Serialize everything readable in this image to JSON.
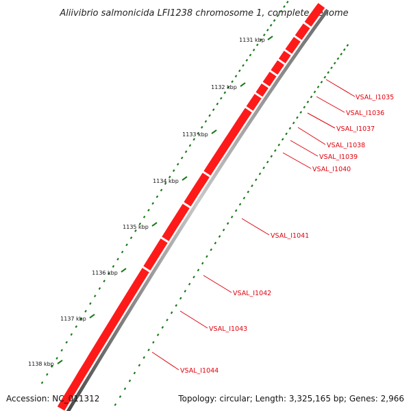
{
  "title": "Aliivibrio salmonicida LFI1238 chromosome 1, complete genome",
  "footer": {
    "accession": "Accession: NC_011312",
    "summary": "Topology: circular; Length: 3,325,165 bp; Genes: 2,966"
  },
  "colors": {
    "backbone": "#8a8a8a",
    "gene": "#ff1a1a",
    "gene_dark": "#b80000",
    "label": "#e0000b",
    "gc_skew": "#1a7a1a"
  },
  "ticks": [
    {
      "label": "1131 kbp",
      "kbp": 1131
    },
    {
      "label": "1132 kbp",
      "kbp": 1132
    },
    {
      "label": "1133 kbp",
      "kbp": 1133
    },
    {
      "label": "1134 kbp",
      "kbp": 1134
    },
    {
      "label": "1135 kbp",
      "kbp": 1135
    },
    {
      "label": "1136 kbp",
      "kbp": 1136
    },
    {
      "label": "1137 kbp",
      "kbp": 1137
    },
    {
      "label": "1138 kbp",
      "kbp": 1138
    }
  ],
  "genes": [
    {
      "label": "VSAL_I1035"
    },
    {
      "label": "VSAL_I1036"
    },
    {
      "label": "VSAL_I1037"
    },
    {
      "label": "VSAL_I1038"
    },
    {
      "label": "VSAL_I1039"
    },
    {
      "label": "VSAL_I1040"
    },
    {
      "label": "VSAL_I1041"
    },
    {
      "label": "VSAL_I1042"
    },
    {
      "label": "VSAL_I1043"
    },
    {
      "label": "VSAL_I1044"
    }
  ]
}
